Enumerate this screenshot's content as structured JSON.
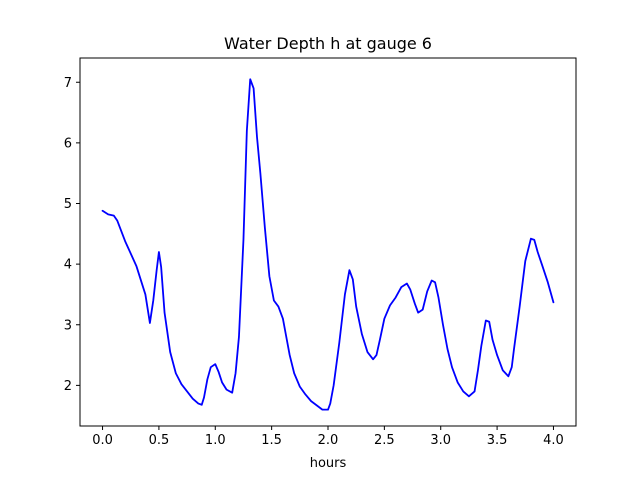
{
  "chart_data": {
    "type": "line",
    "title": "Water Depth h at gauge 6",
    "xlabel": "hours",
    "ylabel": "",
    "xlim": [
      -0.2,
      4.2
    ],
    "ylim": [
      1.33,
      7.4
    ],
    "xticks": [
      0.0,
      0.5,
      1.0,
      1.5,
      2.0,
      2.5,
      3.0,
      3.5,
      4.0
    ],
    "xtick_labels": [
      "0.0",
      "0.5",
      "1.0",
      "1.5",
      "2.0",
      "2.5",
      "3.0",
      "3.5",
      "4.0"
    ],
    "yticks": [
      2,
      3,
      4,
      5,
      6,
      7
    ],
    "ytick_labels": [
      "2",
      "3",
      "4",
      "5",
      "6",
      "7"
    ],
    "grid": false,
    "series": [
      {
        "color": "#0000ff",
        "x": [
          0.0,
          0.05,
          0.1,
          0.13,
          0.2,
          0.3,
          0.38,
          0.42,
          0.45,
          0.48,
          0.5,
          0.52,
          0.55,
          0.6,
          0.65,
          0.7,
          0.75,
          0.8,
          0.85,
          0.88,
          0.9,
          0.93,
          0.96,
          1.0,
          1.03,
          1.06,
          1.1,
          1.15,
          1.18,
          1.21,
          1.25,
          1.28,
          1.31,
          1.34,
          1.37,
          1.4,
          1.44,
          1.48,
          1.52,
          1.56,
          1.6,
          1.63,
          1.66,
          1.7,
          1.75,
          1.8,
          1.85,
          1.9,
          1.95,
          2.0,
          2.02,
          2.05,
          2.1,
          2.15,
          2.19,
          2.22,
          2.25,
          2.3,
          2.35,
          2.4,
          2.43,
          2.46,
          2.5,
          2.55,
          2.6,
          2.65,
          2.7,
          2.73,
          2.77,
          2.8,
          2.84,
          2.88,
          2.92,
          2.95,
          2.98,
          3.02,
          3.06,
          3.1,
          3.15,
          3.2,
          3.25,
          3.3,
          3.33,
          3.36,
          3.4,
          3.43,
          3.46,
          3.5,
          3.55,
          3.6,
          3.63,
          3.65,
          3.7,
          3.75,
          3.8,
          3.83,
          3.86,
          3.9,
          3.95,
          4.0
        ],
        "y": [
          4.88,
          4.82,
          4.8,
          4.72,
          4.38,
          3.97,
          3.5,
          3.03,
          3.4,
          3.9,
          4.2,
          3.95,
          3.2,
          2.55,
          2.2,
          2.02,
          1.9,
          1.78,
          1.7,
          1.68,
          1.8,
          2.1,
          2.3,
          2.35,
          2.22,
          2.05,
          1.93,
          1.88,
          2.2,
          2.8,
          4.4,
          6.2,
          7.05,
          6.9,
          6.1,
          5.5,
          4.6,
          3.8,
          3.4,
          3.3,
          3.1,
          2.8,
          2.5,
          2.2,
          1.98,
          1.85,
          1.74,
          1.67,
          1.6,
          1.6,
          1.7,
          2.0,
          2.7,
          3.5,
          3.9,
          3.75,
          3.3,
          2.85,
          2.55,
          2.43,
          2.5,
          2.75,
          3.1,
          3.32,
          3.45,
          3.62,
          3.68,
          3.58,
          3.35,
          3.2,
          3.25,
          3.55,
          3.73,
          3.7,
          3.45,
          3.0,
          2.6,
          2.3,
          2.05,
          1.9,
          1.82,
          1.9,
          2.25,
          2.65,
          3.07,
          3.05,
          2.75,
          2.5,
          2.25,
          2.15,
          2.3,
          2.6,
          3.3,
          4.05,
          4.42,
          4.4,
          4.2,
          3.98,
          3.7,
          3.37
        ]
      }
    ]
  }
}
